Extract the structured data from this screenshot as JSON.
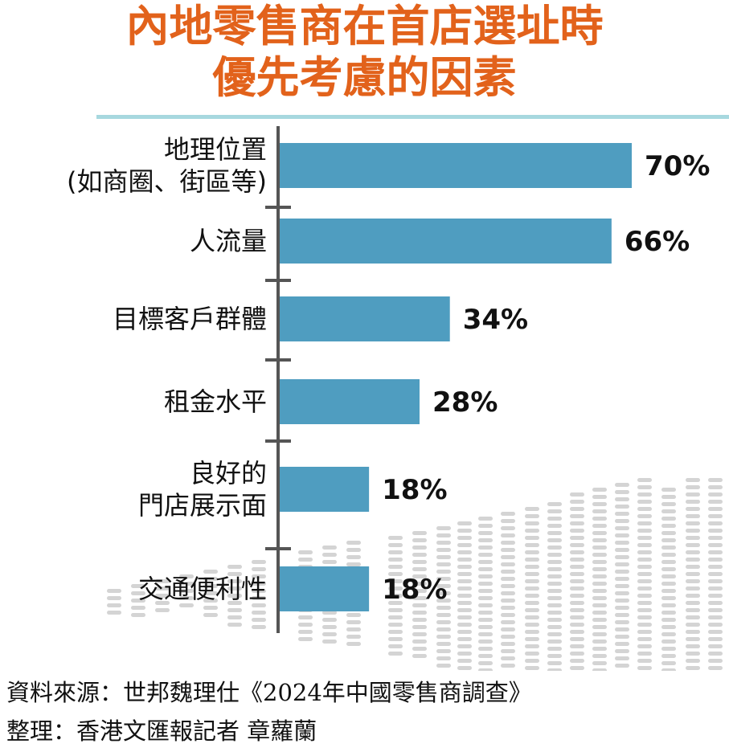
{
  "title": {
    "line1": "內地零售商在首店選址時",
    "line2": "優先考慮的因素"
  },
  "chart_data": {
    "type": "bar",
    "orientation": "horizontal",
    "categories": [
      [
        "地理位置",
        "(如商圈、街區等)"
      ],
      [
        "人流量"
      ],
      [
        "目標客戶群體"
      ],
      [
        "租金水平"
      ],
      [
        "良好的",
        "門店展示面"
      ],
      [
        "交通便利性"
      ]
    ],
    "values": [
      70,
      66,
      34,
      28,
      18,
      18
    ],
    "value_labels": [
      "70%",
      "66%",
      "34%",
      "28%",
      "18%",
      "18%"
    ],
    "unit": "%",
    "xlim": [
      0,
      70
    ],
    "bar_color": "#4f9dc0",
    "axis_color": "#555555"
  },
  "source": {
    "line1": "資料來源：世邦魏理仕《2024年中國零售商調查》",
    "line2": "整理：香港文匯報記者  章蘿蘭"
  },
  "colors": {
    "title": "#e2621b",
    "rule": "#a7d8df",
    "dashes": "#d4d4d4"
  }
}
